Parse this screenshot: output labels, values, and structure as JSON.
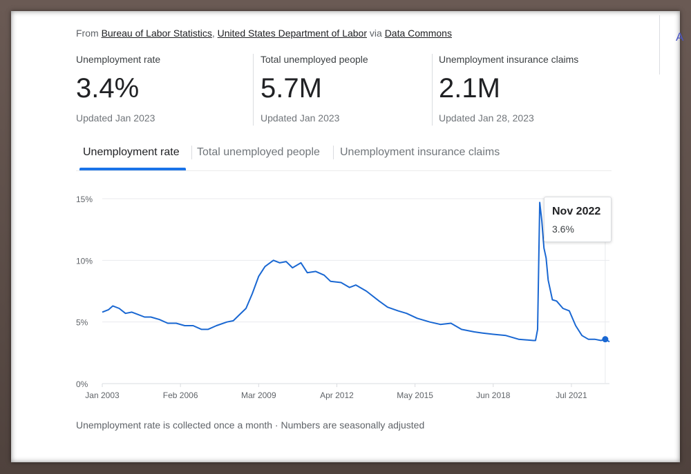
{
  "source": {
    "prefix": "From ",
    "link1": "Bureau of Labor Statistics",
    "comma": ", ",
    "link2": "United States Department of Labor",
    "via": " via ",
    "link3": "Data Commons"
  },
  "right_edge_text": "A",
  "stats": [
    {
      "label": "Unemployment rate",
      "value": "3.4%",
      "updated": "Updated Jan 2023"
    },
    {
      "label": "Total unemployed people",
      "value": "5.7M",
      "updated": "Updated Jan 2023"
    },
    {
      "label": "Unemployment insurance claims",
      "value": "2.1M",
      "updated": "Updated Jan 28, 2023"
    }
  ],
  "tabs": [
    {
      "label": "Unemployment rate",
      "active": true
    },
    {
      "label": "Total unemployed people",
      "active": false
    },
    {
      "label": "Unemployment insurance claims",
      "active": false
    }
  ],
  "tooltip": {
    "date": "Nov 2022",
    "value": "3.6%"
  },
  "footnote": "Unemployment rate is collected once a month · Numbers are seasonally adjusted",
  "colors": {
    "accent": "#1a73e8",
    "line": "#1967d2",
    "grid": "#e8eaed"
  },
  "chart_data": {
    "type": "line",
    "title": "",
    "xlabel": "",
    "ylabel": "",
    "ylim": [
      0,
      15
    ],
    "y_ticks": [
      0,
      5,
      10,
      15
    ],
    "y_tick_labels": [
      "0%",
      "5%",
      "10%",
      "15%"
    ],
    "x_ticks": [
      "2003-01",
      "2006-02",
      "2009-03",
      "2012-04",
      "2015-05",
      "2018-06",
      "2021-07"
    ],
    "x_tick_labels": [
      "Jan 2003",
      "Feb 2006",
      "Mar 2009",
      "Apr 2012",
      "May 2015",
      "Jun 2018",
      "Jul 2021"
    ],
    "x_range": [
      "2003-01",
      "2023-01"
    ],
    "grid": true,
    "series": [
      {
        "points": [
          [
            "2003-01",
            5.8
          ],
          [
            "2003-04",
            6.0
          ],
          [
            "2003-06",
            6.3
          ],
          [
            "2003-09",
            6.1
          ],
          [
            "2003-12",
            5.7
          ],
          [
            "2004-03",
            5.8
          ],
          [
            "2004-06",
            5.6
          ],
          [
            "2004-09",
            5.4
          ],
          [
            "2004-12",
            5.4
          ],
          [
            "2005-04",
            5.2
          ],
          [
            "2005-08",
            4.9
          ],
          [
            "2005-12",
            4.9
          ],
          [
            "2006-04",
            4.7
          ],
          [
            "2006-08",
            4.7
          ],
          [
            "2006-12",
            4.4
          ],
          [
            "2007-03",
            4.4
          ],
          [
            "2007-07",
            4.7
          ],
          [
            "2007-12",
            5.0
          ],
          [
            "2008-03",
            5.1
          ],
          [
            "2008-06",
            5.6
          ],
          [
            "2008-09",
            6.1
          ],
          [
            "2008-12",
            7.3
          ],
          [
            "2009-03",
            8.7
          ],
          [
            "2009-06",
            9.5
          ],
          [
            "2009-10",
            10.0
          ],
          [
            "2010-01",
            9.8
          ],
          [
            "2010-04",
            9.9
          ],
          [
            "2010-07",
            9.4
          ],
          [
            "2010-11",
            9.8
          ],
          [
            "2011-02",
            9.0
          ],
          [
            "2011-06",
            9.1
          ],
          [
            "2011-10",
            8.8
          ],
          [
            "2012-01",
            8.3
          ],
          [
            "2012-06",
            8.2
          ],
          [
            "2012-10",
            7.8
          ],
          [
            "2013-01",
            8.0
          ],
          [
            "2013-06",
            7.5
          ],
          [
            "2013-12",
            6.7
          ],
          [
            "2014-04",
            6.2
          ],
          [
            "2014-09",
            5.9
          ],
          [
            "2015-01",
            5.7
          ],
          [
            "2015-06",
            5.3
          ],
          [
            "2015-12",
            5.0
          ],
          [
            "2016-05",
            4.8
          ],
          [
            "2016-10",
            4.9
          ],
          [
            "2017-03",
            4.4
          ],
          [
            "2017-09",
            4.2
          ],
          [
            "2018-01",
            4.1
          ],
          [
            "2018-06",
            4.0
          ],
          [
            "2018-12",
            3.9
          ],
          [
            "2019-06",
            3.6
          ],
          [
            "2020-01",
            3.5
          ],
          [
            "2020-02",
            3.5
          ],
          [
            "2020-03",
            4.4
          ],
          [
            "2020-04",
            14.7
          ],
          [
            "2020-05",
            13.2
          ],
          [
            "2020-06",
            11.0
          ],
          [
            "2020-07",
            10.2
          ],
          [
            "2020-08",
            8.4
          ],
          [
            "2020-10",
            6.8
          ],
          [
            "2020-12",
            6.7
          ],
          [
            "2021-03",
            6.1
          ],
          [
            "2021-06",
            5.9
          ],
          [
            "2021-09",
            4.7
          ],
          [
            "2021-12",
            3.9
          ],
          [
            "2022-03",
            3.6
          ],
          [
            "2022-06",
            3.6
          ],
          [
            "2022-09",
            3.5
          ],
          [
            "2022-11",
            3.6
          ],
          [
            "2023-01",
            3.4
          ]
        ]
      }
    ],
    "highlight": {
      "x": "2022-11",
      "y": 3.6
    }
  }
}
